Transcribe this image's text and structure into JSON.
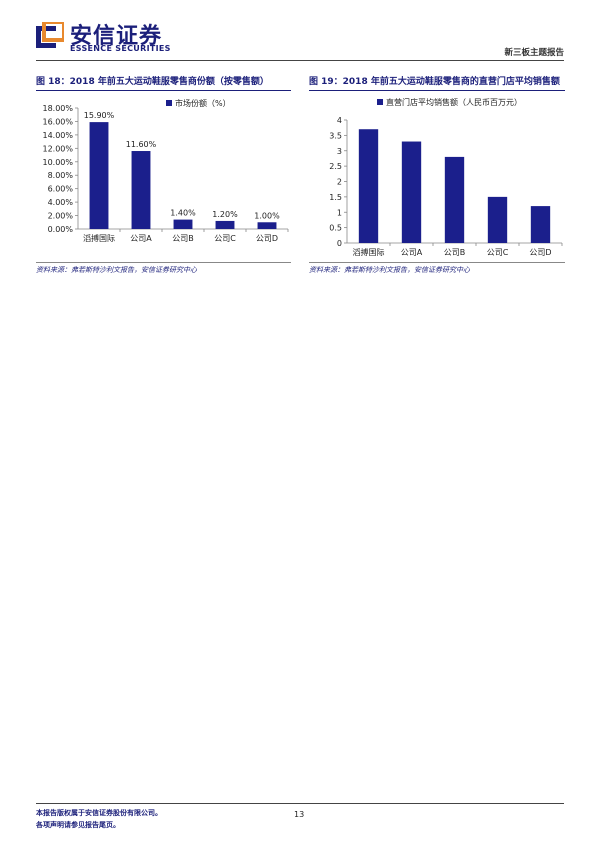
{
  "header": {
    "company_name": "安信证券",
    "company_en": "ESSENCE SECURITIES",
    "report_type": "新三板主题报告"
  },
  "colors": {
    "bar": "#1b1f8c",
    "brand": "#1b1f7a",
    "logo_orange": "#e8892e"
  },
  "figures": [
    {
      "title": "图 18：2018 年前五大运动鞋服零售商份额（按零售额）",
      "source": "资料来源：弗若斯特沙利文报告，安信证券研究中心"
    },
    {
      "title": "图 19：2018 年前五大运动鞋服零售商的直营门店平均销售额",
      "source": "资料来源：弗若斯特沙利文报告，安信证券研究中心"
    }
  ],
  "chart_data": [
    {
      "type": "bar",
      "categories": [
        "滔搏国际",
        "公司A",
        "公司B",
        "公司C",
        "公司D"
      ],
      "series": [
        {
          "name": "市场份额（%）",
          "values": [
            15.9,
            11.6,
            1.4,
            1.2,
            1.0
          ]
        }
      ],
      "data_labels": [
        "15.90%",
        "11.60%",
        "1.40%",
        "1.20%",
        "1.00%"
      ],
      "yticks": [
        "0.00%",
        "2.00%",
        "4.00%",
        "6.00%",
        "8.00%",
        "10.00%",
        "12.00%",
        "14.00%",
        "16.00%",
        "18.00%"
      ],
      "ylim": [
        0,
        18
      ],
      "legend": "top-left",
      "grid": false
    },
    {
      "type": "bar",
      "categories": [
        "滔搏国际",
        "公司A",
        "公司B",
        "公司C",
        "公司D"
      ],
      "series": [
        {
          "name": "直营门店平均销售额（人民币百万元）",
          "values": [
            3.7,
            3.3,
            2.8,
            1.5,
            1.2
          ]
        }
      ],
      "yticks": [
        "0",
        "0.5",
        "1",
        "1.5",
        "2",
        "2.5",
        "3",
        "3.5",
        "4"
      ],
      "ylim": [
        0,
        4
      ],
      "legend": "top-left",
      "grid": false
    }
  ],
  "footer": {
    "line1": "本报告版权属于安信证券股份有限公司。",
    "line2": "各项声明请参见报告尾页。",
    "page_number": "13"
  }
}
